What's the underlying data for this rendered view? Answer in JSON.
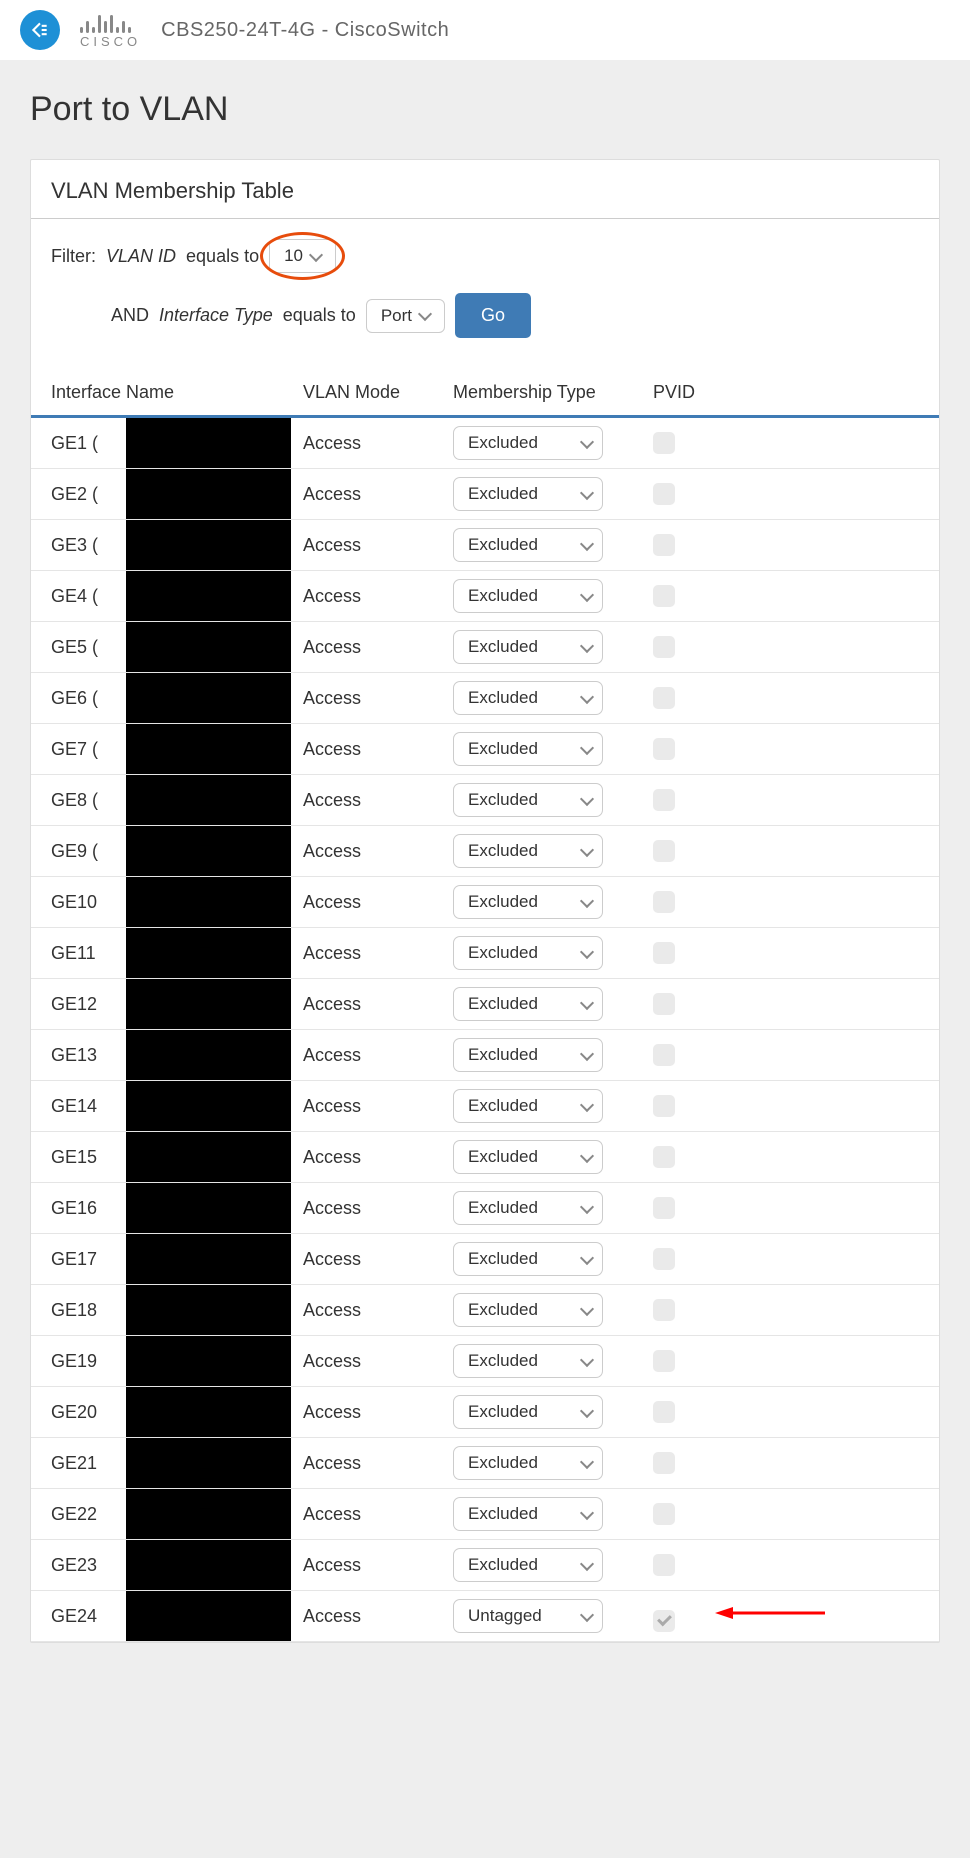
{
  "header": {
    "device": "CBS250-24T-4G - CiscoSwitch",
    "cisco_label": "cisco"
  },
  "page": {
    "title": "Port to VLAN"
  },
  "panel": {
    "title": "VLAN Membership Table"
  },
  "filter": {
    "label": "Filter:",
    "vlan_param": "VLAN ID",
    "equals_label": "equals to",
    "vlan_value": "10",
    "and_label": "AND",
    "iface_param": "Interface Type",
    "iface_value": "Port",
    "go_label": "Go"
  },
  "table": {
    "columns": [
      "Interface Name",
      "VLAN Mode",
      "Membership Type",
      "PVID"
    ],
    "rows": [
      {
        "iface": "GE1 (",
        "mode": "Access",
        "membership": "Excluded",
        "pvid_checked": false,
        "arrow": false
      },
      {
        "iface": "GE2 (",
        "mode": "Access",
        "membership": "Excluded",
        "pvid_checked": false,
        "arrow": false
      },
      {
        "iface": "GE3 (",
        "mode": "Access",
        "membership": "Excluded",
        "pvid_checked": false,
        "arrow": false
      },
      {
        "iface": "GE4 (",
        "mode": "Access",
        "membership": "Excluded",
        "pvid_checked": false,
        "arrow": false
      },
      {
        "iface": "GE5 (",
        "mode": "Access",
        "membership": "Excluded",
        "pvid_checked": false,
        "arrow": false
      },
      {
        "iface": "GE6 (",
        "mode": "Access",
        "membership": "Excluded",
        "pvid_checked": false,
        "arrow": false
      },
      {
        "iface": "GE7 (",
        "mode": "Access",
        "membership": "Excluded",
        "pvid_checked": false,
        "arrow": false
      },
      {
        "iface": "GE8 (",
        "mode": "Access",
        "membership": "Excluded",
        "pvid_checked": false,
        "arrow": false
      },
      {
        "iface": "GE9 (",
        "mode": "Access",
        "membership": "Excluded",
        "pvid_checked": false,
        "arrow": false
      },
      {
        "iface": "GE10",
        "mode": "Access",
        "membership": "Excluded",
        "pvid_checked": false,
        "arrow": false
      },
      {
        "iface": "GE11",
        "mode": "Access",
        "membership": "Excluded",
        "pvid_checked": false,
        "arrow": false
      },
      {
        "iface": "GE12",
        "mode": "Access",
        "membership": "Excluded",
        "pvid_checked": false,
        "arrow": false
      },
      {
        "iface": "GE13",
        "mode": "Access",
        "membership": "Excluded",
        "pvid_checked": false,
        "arrow": false
      },
      {
        "iface": "GE14",
        "mode": "Access",
        "membership": "Excluded",
        "pvid_checked": false,
        "arrow": false
      },
      {
        "iface": "GE15",
        "mode": "Access",
        "membership": "Excluded",
        "pvid_checked": false,
        "arrow": false
      },
      {
        "iface": "GE16",
        "mode": "Access",
        "membership": "Excluded",
        "pvid_checked": false,
        "arrow": false
      },
      {
        "iface": "GE17",
        "mode": "Access",
        "membership": "Excluded",
        "pvid_checked": false,
        "arrow": false
      },
      {
        "iface": "GE18",
        "mode": "Access",
        "membership": "Excluded",
        "pvid_checked": false,
        "arrow": false
      },
      {
        "iface": "GE19",
        "mode": "Access",
        "membership": "Excluded",
        "pvid_checked": false,
        "arrow": false
      },
      {
        "iface": "GE20",
        "mode": "Access",
        "membership": "Excluded",
        "pvid_checked": false,
        "arrow": false
      },
      {
        "iface": "GE21",
        "mode": "Access",
        "membership": "Excluded",
        "pvid_checked": false,
        "arrow": false
      },
      {
        "iface": "GE22",
        "mode": "Access",
        "membership": "Excluded",
        "pvid_checked": false,
        "arrow": false
      },
      {
        "iface": "GE23",
        "mode": "Access",
        "membership": "Excluded",
        "pvid_checked": false,
        "arrow": false
      },
      {
        "iface": "GE24",
        "mode": "Access",
        "membership": "Untagged",
        "pvid_checked": true,
        "arrow": true
      }
    ]
  },
  "style": {
    "accent_color": "#3f7bb5",
    "highlight_ring_color": "#e74c0c",
    "arrow_color": "#ff0000",
    "background_color": "#eeeeee",
    "panel_bg": "#ffffff",
    "border_color": "#e5e5e5",
    "cisco_bar_heights": [
      6,
      12,
      6,
      18,
      12,
      18,
      6,
      12,
      6
    ]
  }
}
